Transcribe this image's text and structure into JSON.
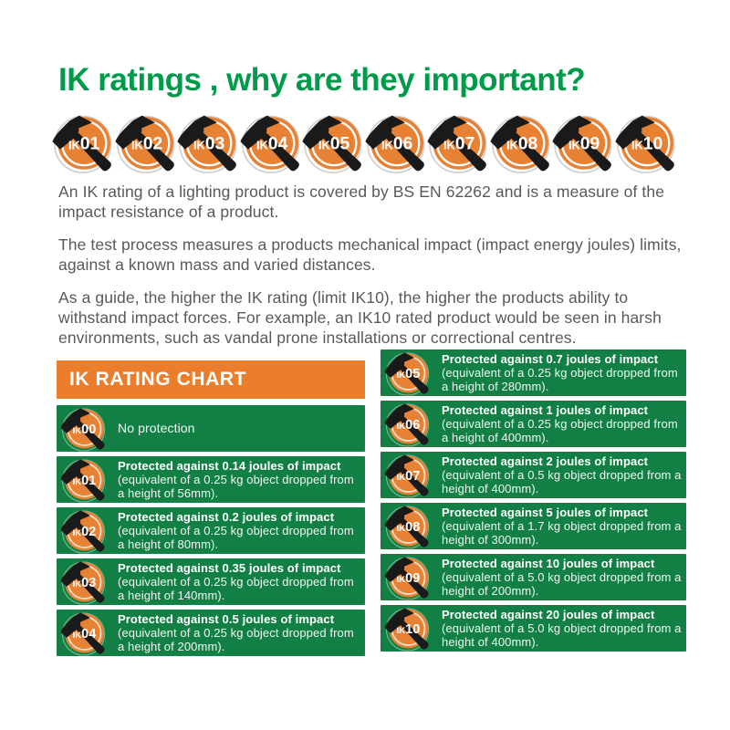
{
  "title": "IK ratings , why are they important?",
  "badges": [
    "IK01",
    "IK02",
    "IK03",
    "IK04",
    "IK05",
    "IK06",
    "IK07",
    "IK08",
    "IK09",
    "IK10"
  ],
  "paragraphs": [
    "An IK rating of a lighting product is covered by BS EN 62262 and is a measure of the impact resistance of a product.",
    "The test process measures a products mechanical impact (impact energy joules) limits, against a known mass and varied distances.",
    "As a guide, the higher the IK rating (limit IK10), the higher the products ability to withstand impact forces. For example, an IK10 rated product would be seen in harsh environments, such as vandal prone installations or correctional centres."
  ],
  "chart": {
    "header": "IK RATING CHART",
    "left_rows": [
      {
        "code": "IK00",
        "impact": "",
        "equivalent": "No protection"
      },
      {
        "code": "IK01",
        "impact": "Protected against 0.14 joules of impact",
        "equivalent": "(equivalent of a 0.25 kg object dropped from a height of 56mm)."
      },
      {
        "code": "IK02",
        "impact": "Protected against 0.2 joules of impact",
        "equivalent": "(equivalent of a 0.25 kg object dropped from a height of 80mm)."
      },
      {
        "code": "IK03",
        "impact": "Protected against 0.35 joules of impact",
        "equivalent": "(equivalent of a 0.25 kg object dropped from a height of 140mm)."
      },
      {
        "code": "IK04",
        "impact": "Protected against 0.5 joules of impact",
        "equivalent": "(equivalent of a 0.25 kg object dropped from a height of 200mm)."
      }
    ],
    "right_rows": [
      {
        "code": "IK05",
        "impact": "Protected against 0.7 joules of impact",
        "equivalent": "(equivalent of a 0.25 kg object dropped from a height of 280mm)."
      },
      {
        "code": "IK06",
        "impact": "Protected against 1 joules of impact",
        "equivalent": "(equivalent of a 0.25 kg object dropped from a height of 400mm)."
      },
      {
        "code": "IK07",
        "impact": "Protected against 2 joules of impact",
        "equivalent": "(equivalent of a 0.5 kg object dropped from a height of 400mm)."
      },
      {
        "code": "IK08",
        "impact": "Protected against 5 joules of impact",
        "equivalent": "(equivalent of a 1.7 kg object dropped from a height of 300mm)."
      },
      {
        "code": "IK09",
        "impact": "Protected against 10 joules of impact",
        "equivalent": "(equivalent of a 5.0 kg object dropped from a height of 200mm)."
      },
      {
        "code": "IK10",
        "impact": "Protected against 20 joules of impact",
        "equivalent": "(equivalent of a 5.0 kg object dropped from a height of 400mm)."
      }
    ]
  },
  "colors": {
    "title_green": "#009B4A",
    "bar_green": "#128044",
    "header_orange": "#EB7D2B",
    "badge_orange": "#E78133",
    "body_text": "#58595B",
    "hammer_black": "#1A1A1A",
    "badge_text": "#FFFFFF"
  }
}
